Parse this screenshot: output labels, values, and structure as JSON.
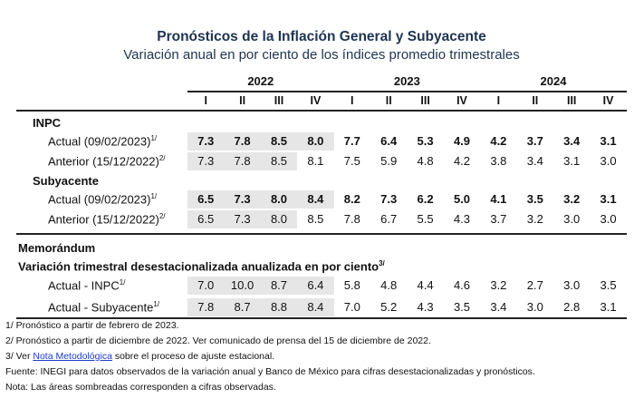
{
  "title": "Pronósticos de la Inflación General y Subyacente",
  "subtitle": "Variación anual en por ciento de los índices promedio trimestrales",
  "years": [
    "2022",
    "2023",
    "2024"
  ],
  "quarters": [
    "I",
    "II",
    "III",
    "IV",
    "I",
    "II",
    "III",
    "IV",
    "I",
    "II",
    "III",
    "IV"
  ],
  "sections": [
    {
      "heading": "INPC",
      "rows": [
        {
          "label": "Actual (09/02/2023)",
          "sup": "1/",
          "bold": true,
          "shaded": 4,
          "values": [
            "7.3",
            "7.8",
            "8.5",
            "8.0",
            "7.7",
            "6.4",
            "5.3",
            "4.9",
            "4.2",
            "3.7",
            "3.4",
            "3.1"
          ]
        },
        {
          "label": "Anterior (15/12/2022)",
          "sup": "2/",
          "bold": false,
          "shaded": 3,
          "values": [
            "7.3",
            "7.8",
            "8.5",
            "8.1",
            "7.5",
            "5.9",
            "4.8",
            "4.2",
            "3.8",
            "3.4",
            "3.1",
            "3.0"
          ]
        }
      ]
    },
    {
      "heading": "Subyacente",
      "rows": [
        {
          "label": "Actual (09/02/2023)",
          "sup": "1/",
          "bold": true,
          "shaded": 4,
          "values": [
            "6.5",
            "7.3",
            "8.0",
            "8.4",
            "8.2",
            "7.3",
            "6.2",
            "5.0",
            "4.1",
            "3.5",
            "3.2",
            "3.1"
          ]
        },
        {
          "label": "Anterior (15/12/2022)",
          "sup": "2/",
          "bold": false,
          "shaded": 3,
          "values": [
            "6.5",
            "7.3",
            "8.0",
            "8.5",
            "7.8",
            "6.7",
            "5.5",
            "4.3",
            "3.7",
            "3.2",
            "3.0",
            "3.0"
          ]
        }
      ]
    }
  ],
  "memo": {
    "heading": "Memorándum",
    "subheading": "Variación trimestral desestacionalizada anualizada en por ciento",
    "sub_sup": "3/",
    "rows": [
      {
        "label": "Actual - INPC",
        "sup": "1/",
        "bold": false,
        "shaded": 4,
        "values": [
          "7.0",
          "10.0",
          "8.7",
          "6.4",
          "5.8",
          "4.8",
          "4.4",
          "4.6",
          "3.2",
          "2.7",
          "3.0",
          "3.5"
        ]
      },
      {
        "label": "Actual - Subyacente",
        "sup": "1/",
        "bold": false,
        "shaded": 4,
        "values": [
          "7.8",
          "8.7",
          "8.8",
          "8.4",
          "7.0",
          "5.2",
          "4.3",
          "3.5",
          "3.4",
          "3.0",
          "2.8",
          "3.1"
        ]
      }
    ]
  },
  "footnotes": {
    "n1": "1/ Pronóstico a partir de febrero de 2023.",
    "n2": "2/ Pronóstico a partir de diciembre de 2022. Ver comunicado de prensa del 15 de diciembre de 2022.",
    "n3_pre": "3/ Ver ",
    "n3_link": "Nota Metodológica",
    "n3_post": " sobre el proceso de ajuste estacional.",
    "fuente": "Fuente: INEGI para datos observados de la variación anual y Banco de México para cifras desestacionalizadas y pronósticos.",
    "nota": "Nota: Las áreas sombreadas corresponden a cifras observadas."
  },
  "colors": {
    "title": "#1f3350",
    "shade": "#e6e6e6",
    "link": "#1a3ccc"
  }
}
